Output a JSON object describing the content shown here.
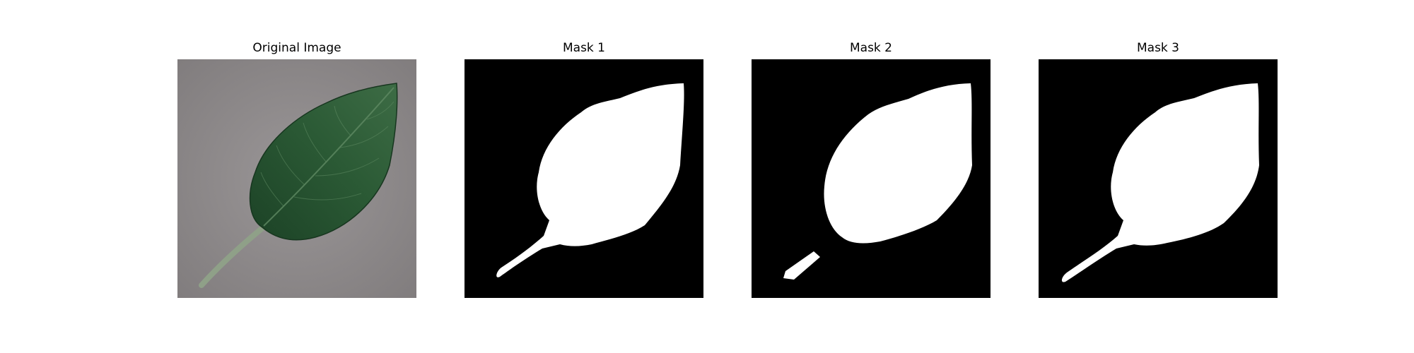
{
  "figure": {
    "panels": [
      {
        "title": "Original Image",
        "kind": "photo",
        "subject": "green leaf on grey surface"
      },
      {
        "title": "Mask 1",
        "kind": "mask"
      },
      {
        "title": "Mask 2",
        "kind": "mask"
      },
      {
        "title": "Mask 3",
        "kind": "mask"
      }
    ]
  },
  "colors": {
    "background": "#ffffff",
    "mask_background": "#000000",
    "mask_foreground": "#ffffff",
    "photo_background": "#8e8a8b",
    "leaf_dark": "#1e4528",
    "leaf_mid": "#2e5e37",
    "leaf_light": "#4d7a52",
    "stem": "#8fa088"
  }
}
